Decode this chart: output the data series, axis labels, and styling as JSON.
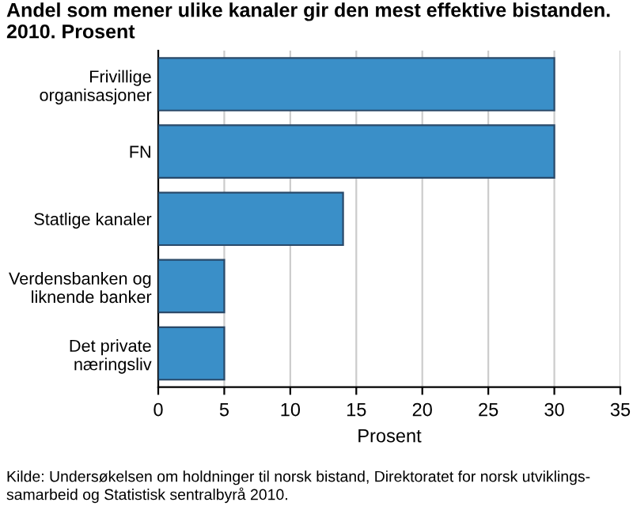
{
  "chart_data": {
    "type": "bar",
    "orientation": "horizontal",
    "title": "Andel som mener ulike kanaler gir den mest effektive bistanden. 2010. Prosent",
    "xlabel": "Prosent",
    "categories": [
      "Frivillige\norganisasjoner",
      "FN",
      "Statlige kanaler",
      "Verdensbanken og\nliknende banker",
      "Det private\nnæringsliv"
    ],
    "values": [
      30,
      30,
      14,
      5,
      5
    ],
    "color": "#3a8fc8",
    "xlim": [
      0,
      35
    ],
    "xticks": [
      0,
      5,
      10,
      15,
      20,
      25,
      30,
      35
    ],
    "grid": "x",
    "annotations": [
      "Kilde: Undersøkelsen om holdninger til norsk bistand, Direktoratet for norsk utviklings-\nsamarbeid og Statistisk sentralbyrå 2010."
    ]
  }
}
